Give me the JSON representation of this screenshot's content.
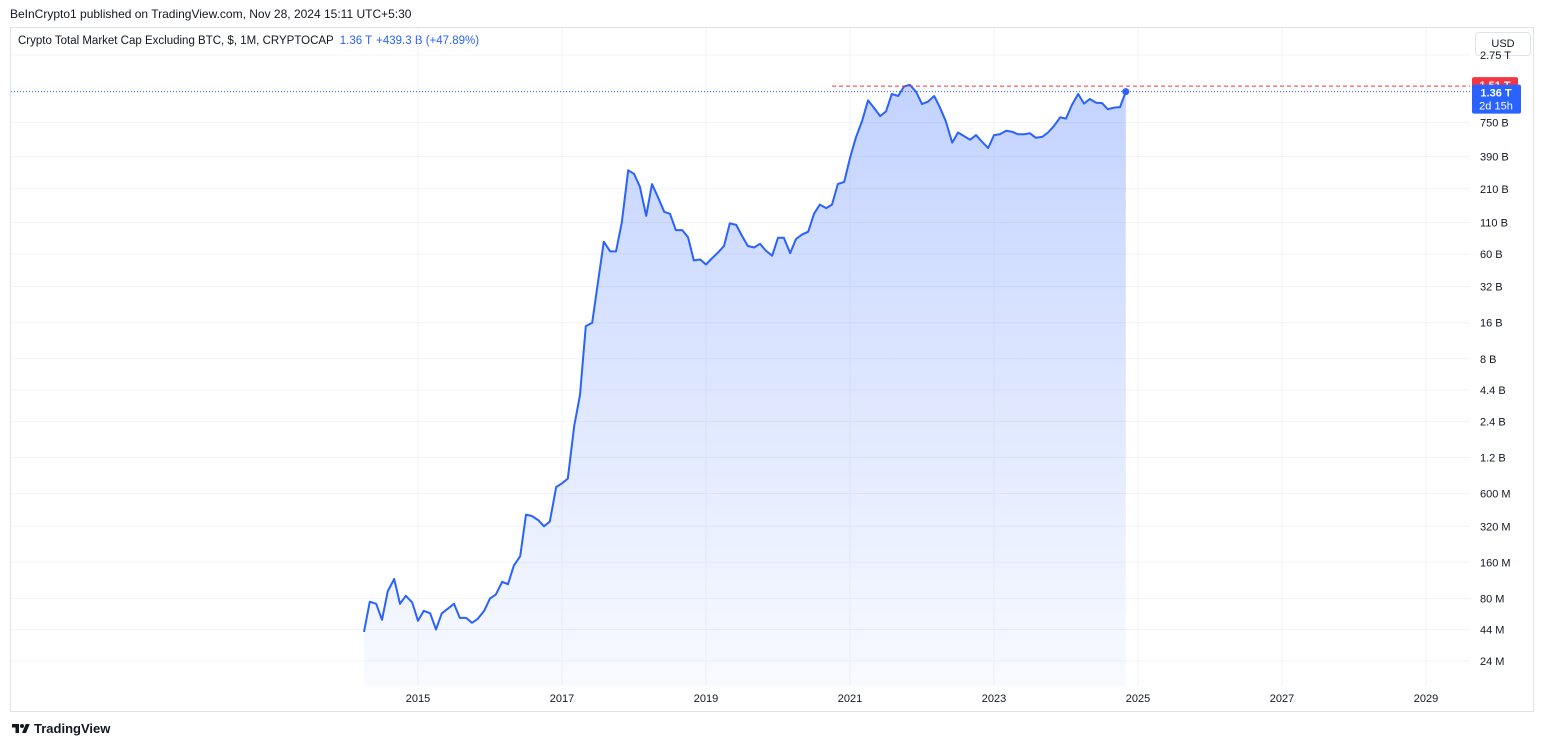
{
  "header": {
    "published": "BeInCrypto1 published on TradingView.com, Nov 28, 2024 15:11 UTC+5:30"
  },
  "legend": {
    "symbol": "Crypto Total Market Cap Excluding BTC, $, 1M, CRYPTOCAP",
    "value": "1.36 T",
    "change": "+439.3 B (+47.89%)"
  },
  "currency_button": "USD",
  "footer": {
    "brand": "TradingView"
  },
  "chart_data": {
    "type": "area",
    "y_scale": "log",
    "ylim": [
      19000000,
      3200000000000
    ],
    "xlim": [
      2014.0,
      2029.8
    ],
    "x_ticks": [
      "2015",
      "2017",
      "2019",
      "2021",
      "2023",
      "2025",
      "2027",
      "2029"
    ],
    "y_ticks": [
      {
        "label": "2.75 T",
        "value": 2750000000000
      },
      {
        "label": "750 B",
        "value": 750000000000
      },
      {
        "label": "390 B",
        "value": 390000000000
      },
      {
        "label": "210 B",
        "value": 210000000000
      },
      {
        "label": "110 B",
        "value": 110000000000
      },
      {
        "label": "60 B",
        "value": 60000000000
      },
      {
        "label": "32 B",
        "value": 32000000000
      },
      {
        "label": "16 B",
        "value": 16000000000
      },
      {
        "label": "8 B",
        "value": 8000000000
      },
      {
        "label": "4.4 B",
        "value": 4400000000
      },
      {
        "label": "2.4 B",
        "value": 2400000000
      },
      {
        "label": "1.2 B",
        "value": 1200000000
      },
      {
        "label": "600 M",
        "value": 600000000
      },
      {
        "label": "320 M",
        "value": 320000000
      },
      {
        "label": "160 M",
        "value": 160000000
      },
      {
        "label": "80 M",
        "value": 80000000
      },
      {
        "label": "44 M",
        "value": 44000000
      },
      {
        "label": "24 M",
        "value": 24000000
      }
    ],
    "price_labels": {
      "high": {
        "text": "1.51 T",
        "value": 1510000000000,
        "color": "#f23645"
      },
      "last": {
        "text": "1.36 T",
        "countdown": "2d 15h",
        "value": 1360000000000,
        "color": "#2962ff"
      }
    },
    "line_color": "#2962ff",
    "grid": true,
    "series": [
      {
        "values": [
          [
            2014.25,
            42000000
          ],
          [
            2014.33,
            75000000
          ],
          [
            2014.42,
            72000000
          ],
          [
            2014.5,
            53000000
          ],
          [
            2014.58,
            92000000
          ],
          [
            2014.67,
            116000000
          ],
          [
            2014.75,
            72000000
          ],
          [
            2014.83,
            84000000
          ],
          [
            2014.92,
            74000000
          ],
          [
            2015.0,
            52000000
          ],
          [
            2015.08,
            63000000
          ],
          [
            2015.17,
            60000000
          ],
          [
            2015.25,
            44000000
          ],
          [
            2015.33,
            60000000
          ],
          [
            2015.42,
            66000000
          ],
          [
            2015.5,
            72000000
          ],
          [
            2015.58,
            55000000
          ],
          [
            2015.67,
            55000000
          ],
          [
            2015.75,
            50000000
          ],
          [
            2015.83,
            54000000
          ],
          [
            2015.92,
            63000000
          ],
          [
            2016.0,
            80000000
          ],
          [
            2016.08,
            86000000
          ],
          [
            2016.17,
            110000000
          ],
          [
            2016.25,
            105000000
          ],
          [
            2016.33,
            150000000
          ],
          [
            2016.42,
            180000000
          ],
          [
            2016.5,
            400000000
          ],
          [
            2016.58,
            390000000
          ],
          [
            2016.67,
            360000000
          ],
          [
            2016.75,
            320000000
          ],
          [
            2016.83,
            350000000
          ],
          [
            2016.92,
            680000000
          ],
          [
            2017.0,
            730000000
          ],
          [
            2017.08,
            800000000
          ],
          [
            2017.17,
            2200000000
          ],
          [
            2017.25,
            4000000000
          ],
          [
            2017.33,
            15000000000
          ],
          [
            2017.42,
            16000000000
          ],
          [
            2017.5,
            35000000000
          ],
          [
            2017.58,
            76000000000
          ],
          [
            2017.67,
            63000000000
          ],
          [
            2017.75,
            63000000000
          ],
          [
            2017.83,
            110000000000
          ],
          [
            2017.92,
            300000000000
          ],
          [
            2018.0,
            280000000000
          ],
          [
            2018.08,
            220000000000
          ],
          [
            2018.17,
            125000000000
          ],
          [
            2018.25,
            230000000000
          ],
          [
            2018.33,
            180000000000
          ],
          [
            2018.42,
            135000000000
          ],
          [
            2018.5,
            130000000000
          ],
          [
            2018.58,
            95000000000
          ],
          [
            2018.67,
            95000000000
          ],
          [
            2018.75,
            83000000000
          ],
          [
            2018.83,
            53000000000
          ],
          [
            2018.92,
            54000000000
          ],
          [
            2019.0,
            49000000000
          ],
          [
            2019.08,
            55000000000
          ],
          [
            2019.17,
            62000000000
          ],
          [
            2019.25,
            70000000000
          ],
          [
            2019.33,
            108000000000
          ],
          [
            2019.42,
            105000000000
          ],
          [
            2019.5,
            85000000000
          ],
          [
            2019.58,
            70000000000
          ],
          [
            2019.67,
            68000000000
          ],
          [
            2019.75,
            73000000000
          ],
          [
            2019.83,
            64000000000
          ],
          [
            2019.92,
            58000000000
          ],
          [
            2020.0,
            82000000000
          ],
          [
            2020.08,
            82000000000
          ],
          [
            2020.17,
            61000000000
          ],
          [
            2020.25,
            80000000000
          ],
          [
            2020.33,
            87000000000
          ],
          [
            2020.42,
            92000000000
          ],
          [
            2020.5,
            130000000000
          ],
          [
            2020.58,
            155000000000
          ],
          [
            2020.67,
            145000000000
          ],
          [
            2020.75,
            155000000000
          ],
          [
            2020.83,
            230000000000
          ],
          [
            2020.92,
            240000000000
          ],
          [
            2021.0,
            380000000000
          ],
          [
            2021.08,
            560000000000
          ],
          [
            2021.17,
            780000000000
          ],
          [
            2021.25,
            1150000000000
          ],
          [
            2021.33,
            1000000000000
          ],
          [
            2021.42,
            850000000000
          ],
          [
            2021.5,
            930000000000
          ],
          [
            2021.58,
            1300000000000
          ],
          [
            2021.67,
            1250000000000
          ],
          [
            2021.75,
            1500000000000
          ],
          [
            2021.83,
            1550000000000
          ],
          [
            2021.92,
            1350000000000
          ],
          [
            2022.0,
            1070000000000
          ],
          [
            2022.08,
            1120000000000
          ],
          [
            2022.17,
            1250000000000
          ],
          [
            2022.25,
            1000000000000
          ],
          [
            2022.33,
            770000000000
          ],
          [
            2022.42,
            510000000000
          ],
          [
            2022.5,
            620000000000
          ],
          [
            2022.58,
            580000000000
          ],
          [
            2022.67,
            540000000000
          ],
          [
            2022.75,
            590000000000
          ],
          [
            2022.83,
            520000000000
          ],
          [
            2022.92,
            460000000000
          ],
          [
            2023.0,
            590000000000
          ],
          [
            2023.08,
            600000000000
          ],
          [
            2023.17,
            640000000000
          ],
          [
            2023.25,
            630000000000
          ],
          [
            2023.33,
            600000000000
          ],
          [
            2023.42,
            600000000000
          ],
          [
            2023.5,
            610000000000
          ],
          [
            2023.58,
            560000000000
          ],
          [
            2023.67,
            570000000000
          ],
          [
            2023.75,
            620000000000
          ],
          [
            2023.83,
            700000000000
          ],
          [
            2023.92,
            830000000000
          ],
          [
            2024.0,
            810000000000
          ],
          [
            2024.08,
            1050000000000
          ],
          [
            2024.17,
            1300000000000
          ],
          [
            2024.25,
            1080000000000
          ],
          [
            2024.33,
            1180000000000
          ],
          [
            2024.42,
            1100000000000
          ],
          [
            2024.5,
            1090000000000
          ],
          [
            2024.58,
            970000000000
          ],
          [
            2024.67,
            1000000000000
          ],
          [
            2024.75,
            1010000000000
          ],
          [
            2024.83,
            1360000000000
          ]
        ]
      }
    ]
  }
}
